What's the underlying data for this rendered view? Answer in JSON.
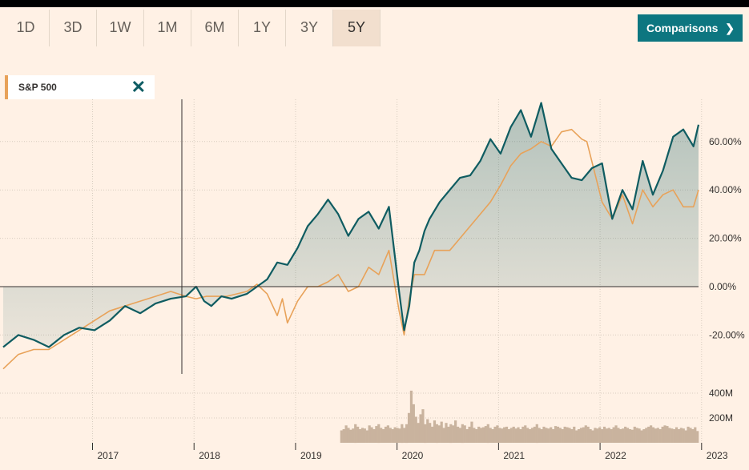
{
  "range_buttons": [
    "1D",
    "3D",
    "1W",
    "1M",
    "6M",
    "1Y",
    "3Y",
    "5Y"
  ],
  "active_range": "5Y",
  "comparisons_label": "Comparisons",
  "comparison_series_label": "S&P 500",
  "colors": {
    "main": "#0f5c61",
    "comparison": "#e8a259",
    "volume": "#c9b39e",
    "accent_button": "#0d7680"
  },
  "chart_data": {
    "type": "line",
    "y_ticks": [
      "60.00%",
      "40.00%",
      "20.00%",
      "0.00%",
      "-20.00%"
    ],
    "y_tick_values": [
      60,
      40,
      20,
      0,
      -20
    ],
    "volume_ticks": [
      "400M",
      "200M"
    ],
    "volume_tick_values": [
      400,
      200
    ],
    "x_ticks": [
      "2017",
      "2018",
      "2019",
      "2020",
      "2021",
      "2022",
      "2023"
    ],
    "x_tick_values": [
      2017,
      2018,
      2019,
      2020,
      2021,
      2022,
      2023
    ],
    "ylim": [
      -30,
      75
    ],
    "xlim": [
      2016.1,
      2022.95
    ],
    "series": [
      {
        "x": [
          2016.1,
          2016.25,
          2016.4,
          2016.55,
          2016.7,
          2016.85,
          2017.0,
          2017.15,
          2017.3,
          2017.45,
          2017.6,
          2017.75,
          2017.9,
          2018.0,
          2018.08,
          2018.15,
          2018.25,
          2018.35,
          2018.5,
          2018.6,
          2018.7,
          2018.8,
          2018.9,
          2019.0,
          2019.1,
          2019.2,
          2019.3,
          2019.4,
          2019.5,
          2019.6,
          2019.7,
          2019.8,
          2019.9,
          2020.0,
          2020.05,
          2020.1,
          2020.15,
          2020.2,
          2020.25,
          2020.3,
          2020.4,
          2020.5,
          2020.6,
          2020.7,
          2020.8,
          2020.9,
          2021.0,
          2021.1,
          2021.2,
          2021.3,
          2021.4,
          2021.5,
          2021.6,
          2021.7,
          2021.8,
          2021.9,
          2022.0,
          2022.1,
          2022.2,
          2022.3,
          2022.4,
          2022.5,
          2022.6,
          2022.7,
          2022.8,
          2022.9,
          2022.95
        ],
        "values": [
          -25,
          -20,
          -22,
          -25,
          -20,
          -17,
          -18,
          -14,
          -8,
          -11,
          -7,
          -5,
          -4,
          0,
          -6,
          -8,
          -4,
          -5,
          -3,
          0,
          3,
          10,
          9,
          16,
          25,
          30,
          36,
          30,
          21,
          28,
          31,
          24,
          33,
          -2,
          -18,
          -8,
          10,
          15,
          23,
          28,
          35,
          40,
          45,
          46,
          52,
          61,
          55,
          66,
          73,
          62,
          76,
          57,
          51,
          45,
          44,
          49,
          51,
          28,
          40,
          32,
          52,
          38,
          48,
          62,
          65,
          58,
          67
        ]
      },
      {
        "x": [
          2016.1,
          2016.25,
          2016.4,
          2016.55,
          2016.7,
          2016.85,
          2017.0,
          2017.15,
          2017.3,
          2017.45,
          2017.6,
          2017.75,
          2017.9,
          2018.0,
          2018.1,
          2018.2,
          2018.3,
          2018.5,
          2018.6,
          2018.7,
          2018.8,
          2018.85,
          2018.9,
          2019.0,
          2019.1,
          2019.2,
          2019.3,
          2019.4,
          2019.5,
          2019.6,
          2019.7,
          2019.8,
          2019.9,
          2020.0,
          2020.05,
          2020.1,
          2020.15,
          2020.25,
          2020.35,
          2020.5,
          2020.6,
          2020.7,
          2020.8,
          2020.9,
          2021.0,
          2021.1,
          2021.2,
          2021.3,
          2021.4,
          2021.5,
          2021.6,
          2021.7,
          2021.8,
          2021.85,
          2022.0,
          2022.1,
          2022.2,
          2022.3,
          2022.4,
          2022.5,
          2022.6,
          2022.7,
          2022.8,
          2022.9,
          2022.95
        ],
        "values": [
          -34,
          -28,
          -26,
          -26,
          -22,
          -18,
          -14,
          -10,
          -8,
          -6,
          -4,
          -2,
          -4,
          -5,
          -4,
          -4,
          -4,
          -2,
          1,
          -3,
          -12,
          -5,
          -15,
          -6,
          0,
          0,
          2,
          5,
          -2,
          0,
          8,
          5,
          15,
          -10,
          -20,
          -5,
          5,
          5,
          15,
          15,
          20,
          25,
          30,
          35,
          42,
          50,
          55,
          57,
          60,
          58,
          64,
          65,
          61,
          60,
          35,
          28,
          38,
          26,
          40,
          33,
          38,
          40,
          33,
          33,
          40
        ]
      }
    ],
    "volume": {
      "x_start": 2019.42,
      "x_end": 2022.95,
      "values": [
        100,
        110,
        140,
        120,
        105,
        115,
        150,
        130,
        110,
        120,
        115,
        100,
        140,
        125,
        110,
        135,
        150,
        120,
        110,
        130,
        140,
        120,
        110,
        125,
        120,
        115,
        150,
        120,
        150,
        240,
        420,
        310,
        210,
        160,
        230,
        270,
        150,
        190,
        160,
        130,
        180,
        150,
        140,
        170,
        120,
        160,
        130,
        150,
        140,
        180,
        130,
        120,
        150,
        140,
        110,
        130,
        170,
        120,
        110,
        130,
        120,
        125,
        135,
        150,
        120,
        110,
        130,
        140,
        120,
        115,
        125,
        130,
        110,
        120,
        130,
        115,
        125,
        110,
        130,
        140,
        120,
        110,
        120,
        130,
        150,
        120,
        110,
        130,
        120,
        115,
        125,
        110,
        135,
        130,
        120,
        110,
        130,
        125,
        120,
        110,
        130,
        100,
        110,
        120,
        125,
        140,
        130,
        110,
        100,
        120,
        115,
        125,
        110,
        130,
        115,
        120,
        110,
        125,
        140,
        120,
        110,
        115,
        130,
        120,
        110,
        105,
        130,
        120,
        115,
        100,
        110,
        120,
        130,
        140,
        125,
        115,
        120,
        110,
        130,
        140,
        135,
        120,
        115,
        110,
        125,
        110,
        120,
        115,
        100,
        130,
        120,
        110,
        125,
        95
      ]
    }
  }
}
